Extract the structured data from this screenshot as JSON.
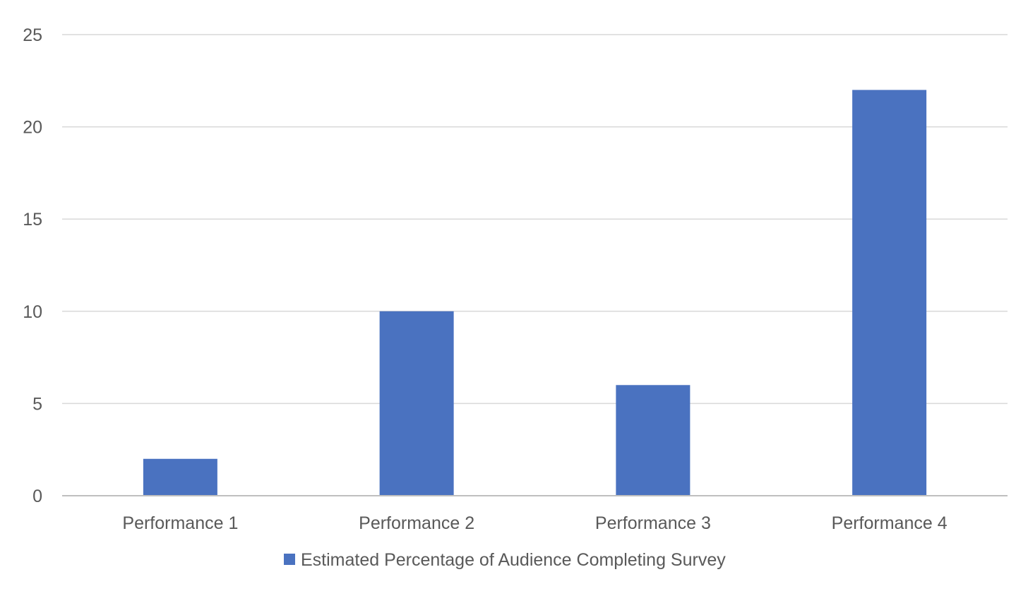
{
  "chart_data": {
    "type": "bar",
    "title": "",
    "xlabel": "",
    "ylabel": "",
    "categories": [
      "Performance 1",
      "Performance 2",
      "Performance 3",
      "Performance 4"
    ],
    "series": [
      {
        "name": "Estimated Percentage of Audience Completing Survey",
        "values": [
          2,
          10,
          6,
          22
        ],
        "color": "#4a72c0"
      }
    ],
    "ylim": [
      0,
      25
    ],
    "y_ticks": [
      "0",
      "5",
      "10",
      "15",
      "20",
      "25"
    ],
    "grid": true,
    "legend": {
      "placement": "bottom-center"
    },
    "colors": {
      "gridline": "#d9d9d9",
      "axis_line": "#bfbfbf",
      "text": "#595959"
    }
  }
}
